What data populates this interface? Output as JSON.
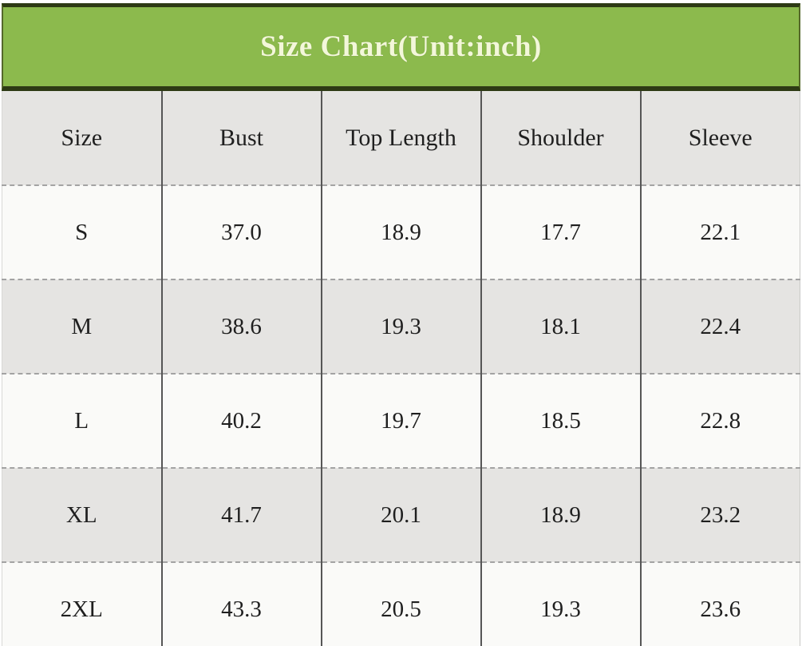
{
  "title": "Size Chart(Unit:inch)",
  "table": {
    "columns": [
      "Size",
      "Bust",
      "Top Length",
      "Shoulder",
      "Sleeve"
    ],
    "rows": [
      {
        "size": "S",
        "values": [
          "37.0",
          "18.9",
          "17.7",
          "22.1"
        ]
      },
      {
        "size": "M",
        "values": [
          "38.6",
          "19.3",
          "18.1",
          "22.4"
        ]
      },
      {
        "size": "L",
        "values": [
          "40.2",
          "19.7",
          "18.5",
          "22.8"
        ]
      },
      {
        "size": "XL",
        "values": [
          "41.7",
          "20.1",
          "18.9",
          "23.2"
        ]
      },
      {
        "size": "2XL",
        "values": [
          "43.3",
          "20.5",
          "19.3",
          "23.6"
        ]
      }
    ]
  },
  "colors": {
    "header_green": "#8cba4d",
    "header_border_green": "#2d3a14",
    "title_text": "#f3f7da",
    "row_gray": "#e5e4e2",
    "row_white": "#fafaf8",
    "cell_text": "#1f1f1f",
    "column_divider": "#565656",
    "row_divider_dashed": "#a3a3a3"
  },
  "chart_data": {
    "type": "table",
    "title": "Size Chart(Unit:inch)",
    "unit": "inch",
    "columns": [
      "Size",
      "Bust",
      "Top Length",
      "Shoulder",
      "Sleeve"
    ],
    "rows": [
      [
        "S",
        37.0,
        18.9,
        17.7,
        22.1
      ],
      [
        "M",
        38.6,
        19.3,
        18.1,
        22.4
      ],
      [
        "L",
        40.2,
        19.7,
        18.5,
        22.8
      ],
      [
        "XL",
        41.7,
        20.1,
        18.9,
        23.2
      ],
      [
        "2XL",
        43.3,
        20.5,
        19.3,
        23.6
      ]
    ],
    "layout": {
      "header_band": "green bar with dark green top/bottom borders, centered bold cream title",
      "row_striping": "header gray, then white/gray alternating starting white",
      "column_dividers": "thin solid dark gray vertical lines",
      "row_dividers": "light gray dashed horizontal lines",
      "last_row_clipped_at_bottom": true
    }
  }
}
